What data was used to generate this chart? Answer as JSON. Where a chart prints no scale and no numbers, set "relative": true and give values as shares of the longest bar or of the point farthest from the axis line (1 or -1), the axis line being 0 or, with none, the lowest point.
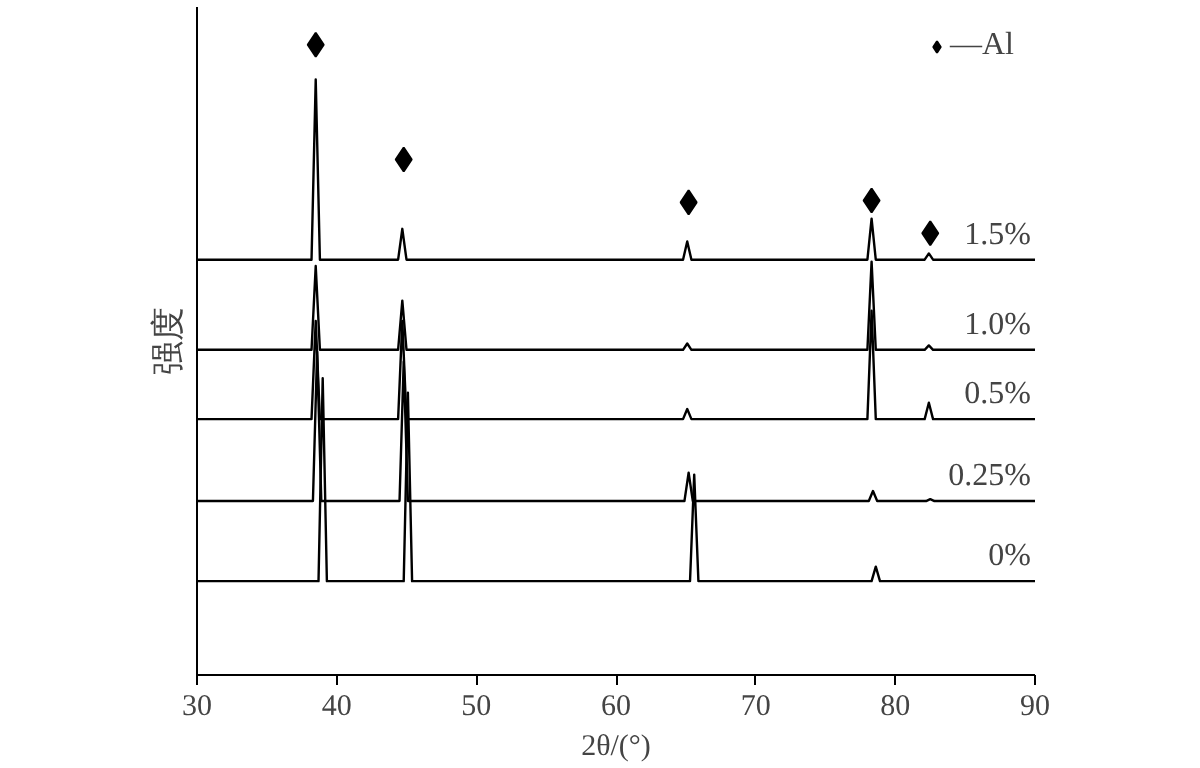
{
  "chart_data": {
    "type": "line",
    "relative": true,
    "xlabel": "2θ/(°)",
    "ylabel": "强度",
    "xlim": [
      30,
      90
    ],
    "xticks": [
      30,
      40,
      50,
      60,
      70,
      80,
      90
    ],
    "grid": false,
    "legend": "top right",
    "marker": "none",
    "line_style": "solid",
    "series": [
      {
        "name": "1.5%",
        "color": "#000000",
        "x": [
          30,
          38.2,
          38.5,
          38.8,
          44.4,
          44.7,
          45.0,
          64.8,
          65.1,
          65.4,
          78.0,
          78.3,
          78.6,
          82.1,
          82.4,
          82.7,
          90
        ],
        "values": [
          0.659,
          0.659,
          0.945,
          0.659,
          0.659,
          0.708,
          0.659,
          0.659,
          0.688,
          0.659,
          0.659,
          0.724,
          0.659,
          0.659,
          0.669,
          0.659,
          0.659
        ]
      },
      {
        "name": "1.0%",
        "color": "#000000",
        "x": [
          30,
          38.2,
          38.5,
          38.8,
          44.4,
          44.7,
          45.0,
          64.8,
          65.1,
          65.4,
          78.0,
          78.3,
          78.6,
          82.1,
          82.4,
          82.7,
          90
        ],
        "values": [
          0.516,
          0.516,
          0.649,
          0.516,
          0.516,
          0.594,
          0.516,
          0.516,
          0.526,
          0.516,
          0.516,
          0.656,
          0.516,
          0.516,
          0.523,
          0.516,
          0.516
        ]
      },
      {
        "name": "0.5%",
        "color": "#000000",
        "x": [
          30,
          38.2,
          38.5,
          38.8,
          44.4,
          44.7,
          45.0,
          64.8,
          65.1,
          65.4,
          78.0,
          78.3,
          78.6,
          82.1,
          82.4,
          82.7,
          90
        ],
        "values": [
          0.406,
          0.406,
          0.562,
          0.406,
          0.406,
          0.562,
          0.406,
          0.406,
          0.422,
          0.406,
          0.406,
          0.578,
          0.406,
          0.406,
          0.432,
          0.406,
          0.406
        ]
      },
      {
        "name": "0.25%",
        "color": "#000000",
        "x": [
          30,
          38.3,
          38.6,
          38.9,
          44.5,
          44.8,
          45.1,
          64.9,
          65.2,
          65.5,
          78.1,
          78.4,
          78.7,
          82.2,
          82.5,
          82.8,
          90
        ],
        "values": [
          0.276,
          0.276,
          0.513,
          0.276,
          0.276,
          0.497,
          0.276,
          0.276,
          0.321,
          0.276,
          0.276,
          0.292,
          0.276,
          0.276,
          0.279,
          0.276,
          0.276
        ]
      },
      {
        "name": "0%",
        "color": "#000000",
        "x": [
          30,
          38.7,
          39.0,
          39.3,
          44.8,
          45.1,
          45.4,
          65.3,
          65.6,
          65.9,
          78.3,
          78.6,
          78.9,
          90
        ],
        "values": [
          0.149,
          0.149,
          0.471,
          0.149,
          0.149,
          0.448,
          0.149,
          0.149,
          0.318,
          0.149,
          0.149,
          0.172,
          0.149,
          0.149
        ]
      },
      {
        "name": "—Al",
        "type": "scatter",
        "marker": "diamond",
        "color": "#000000",
        "x": [
          38.5,
          44.8,
          65.2,
          78.3,
          82.5
        ],
        "values": [
          1.0,
          0.818,
          0.75,
          0.753,
          0.701
        ]
      }
    ]
  }
}
